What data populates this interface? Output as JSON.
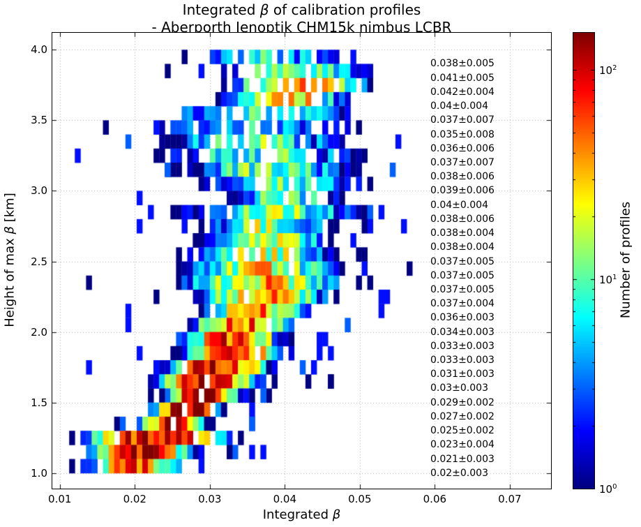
{
  "title": {
    "pre": "Integrated ",
    "beta": "β",
    "post": " of calibration profiles",
    "line2": "- Aberporth Jenoptik CHM15k nimbus LCBR"
  },
  "xlabel": {
    "pre": "Integrated ",
    "beta": "β",
    "post": ""
  },
  "ylabel": {
    "pre": "Height of max ",
    "beta": "β",
    "post": " [km]"
  },
  "colorbar": {
    "label": "Number of profiles",
    "colormap": "jet",
    "scale": "log",
    "vmin": 1,
    "vmax": 150,
    "ticks": [
      {
        "base": "10",
        "exp": "0",
        "value": 1
      },
      {
        "base": "10",
        "exp": "1",
        "value": 10
      },
      {
        "base": "10",
        "exp": "2",
        "value": 100
      }
    ]
  },
  "axes": {
    "x_ticks": [
      "0.01",
      "0.02",
      "0.03",
      "0.04",
      "0.05",
      "0.06",
      "0.07"
    ],
    "x_tick_values": [
      0.01,
      0.02,
      0.03,
      0.04,
      0.05,
      0.06,
      0.07
    ],
    "y_ticks": [
      "1.0",
      "1.5",
      "2.0",
      "2.5",
      "3.0",
      "3.5",
      "4.0"
    ],
    "y_tick_values": [
      1.0,
      1.5,
      2.0,
      2.5,
      3.0,
      3.5,
      4.0
    ],
    "x_range": [
      0.009,
      0.0755
    ],
    "y_range": [
      0.89,
      4.12
    ],
    "grid": "dotted"
  },
  "chart_data": {
    "type": "heatmap",
    "x_bin_width": 0.00075,
    "x_start": 0.0105,
    "x_end": 0.0575,
    "height_bin_km": 0.1,
    "noise_seed": 7,
    "rows": [
      {
        "height": 3.9,
        "label": "0.038±0.005",
        "mean": 0.038,
        "std": 0.005,
        "peak": 6
      },
      {
        "height": 3.8,
        "label": "0.041±0.005",
        "mean": 0.041,
        "std": 0.005,
        "peak": 12
      },
      {
        "height": 3.7,
        "label": "0.042±0.004",
        "mean": 0.042,
        "std": 0.004,
        "peak": 45
      },
      {
        "height": 3.6,
        "label": "0.04±0.004",
        "mean": 0.04,
        "std": 0.004,
        "peak": 30
      },
      {
        "height": 3.5,
        "label": "0.037±0.007",
        "mean": 0.037,
        "std": 0.007,
        "peak": 7
      },
      {
        "height": 3.4,
        "label": "0.035±0.008",
        "mean": 0.035,
        "std": 0.008,
        "peak": 6
      },
      {
        "height": 3.3,
        "label": "0.036±0.006",
        "mean": 0.036,
        "std": 0.006,
        "peak": 10
      },
      {
        "height": 3.2,
        "label": "0.037±0.007",
        "mean": 0.037,
        "std": 0.007,
        "peak": 8
      },
      {
        "height": 3.1,
        "label": "0.038±0.006",
        "mean": 0.038,
        "std": 0.006,
        "peak": 10
      },
      {
        "height": 3.0,
        "label": "0.039±0.006",
        "mean": 0.039,
        "std": 0.006,
        "peak": 9
      },
      {
        "height": 2.9,
        "label": "0.04±0.004",
        "mean": 0.04,
        "std": 0.004,
        "peak": 11
      },
      {
        "height": 2.8,
        "label": "0.038±0.006",
        "mean": 0.038,
        "std": 0.006,
        "peak": 12
      },
      {
        "height": 2.7,
        "label": "0.038±0.004",
        "mean": 0.038,
        "std": 0.004,
        "peak": 14
      },
      {
        "height": 2.6,
        "label": "0.038±0.004",
        "mean": 0.038,
        "std": 0.004,
        "peak": 18
      },
      {
        "height": 2.5,
        "label": "0.037±0.005",
        "mean": 0.037,
        "std": 0.005,
        "peak": 18
      },
      {
        "height": 2.4,
        "label": "0.037±0.005",
        "mean": 0.037,
        "std": 0.005,
        "peak": 22
      },
      {
        "height": 2.3,
        "label": "0.037±0.005",
        "mean": 0.037,
        "std": 0.005,
        "peak": 30
      },
      {
        "height": 2.2,
        "label": "0.037±0.004",
        "mean": 0.037,
        "std": 0.004,
        "peak": 35
      },
      {
        "height": 2.1,
        "label": "0.036±0.003",
        "mean": 0.036,
        "std": 0.003,
        "peak": 42
      },
      {
        "height": 2.0,
        "label": "0.034±0.003",
        "mean": 0.034,
        "std": 0.003,
        "peak": 55
      },
      {
        "height": 1.9,
        "label": "0.033±0.003",
        "mean": 0.033,
        "std": 0.003,
        "peak": 65
      },
      {
        "height": 1.8,
        "label": "0.033±0.003",
        "mean": 0.033,
        "std": 0.003,
        "peak": 85
      },
      {
        "height": 1.7,
        "label": "0.031±0.003",
        "mean": 0.031,
        "std": 0.003,
        "peak": 100
      },
      {
        "height": 1.6,
        "label": "0.03±0.003",
        "mean": 0.03,
        "std": 0.003,
        "peak": 115
      },
      {
        "height": 1.5,
        "label": "0.029±0.002",
        "mean": 0.029,
        "std": 0.002,
        "peak": 145
      },
      {
        "height": 1.4,
        "label": "0.027±0.002",
        "mean": 0.027,
        "std": 0.002,
        "peak": 125
      },
      {
        "height": 1.3,
        "label": "0.025±0.002",
        "mean": 0.025,
        "std": 0.002,
        "peak": 95
      },
      {
        "height": 1.2,
        "label": "0.023±0.004",
        "mean": 0.023,
        "std": 0.004,
        "peak": 110
      },
      {
        "height": 1.1,
        "label": "0.021±0.003",
        "mean": 0.021,
        "std": 0.003,
        "peak": 100
      },
      {
        "height": 1.0,
        "label": "0.02±0.003",
        "mean": 0.02,
        "std": 0.003,
        "peak": 55
      }
    ]
  }
}
